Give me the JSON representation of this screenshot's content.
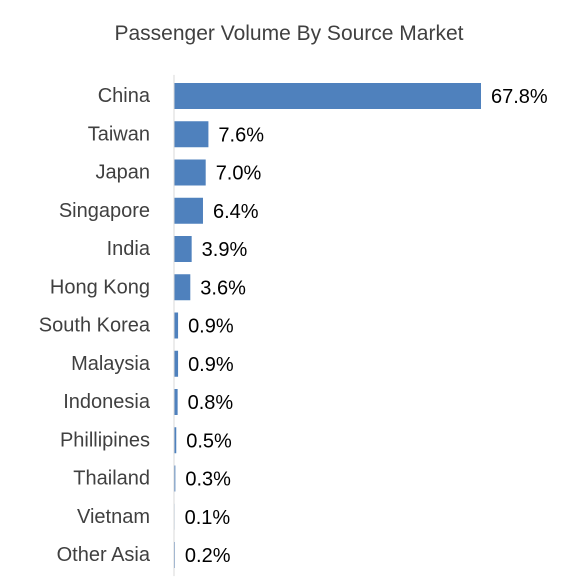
{
  "chart_data": {
    "type": "bar",
    "orientation": "horizontal",
    "title": "Passenger Volume By Source Market",
    "categories": [
      "China",
      "Taiwan",
      "Japan",
      "Singapore",
      "India",
      "Hong Kong",
      "South Korea",
      "Malaysia",
      "Indonesia",
      "Phillipines",
      "Thailand",
      "Vietnam",
      "Other Asia"
    ],
    "values": [
      67.8,
      7.6,
      7.0,
      6.4,
      3.9,
      3.6,
      0.9,
      0.9,
      0.8,
      0.5,
      0.3,
      0.1,
      0.2
    ],
    "data_labels": [
      "67.8%",
      "7.6%",
      "7.0%",
      "6.4%",
      "3.9%",
      "3.6%",
      "0.9%",
      "0.9%",
      "0.8%",
      "0.5%",
      "0.3%",
      "0.1%",
      "0.2%"
    ],
    "unit": "%",
    "xlim": [
      0,
      67.8
    ],
    "grid": false,
    "legend": "none",
    "bar_color": "#4f81bd",
    "axis_color": "#d9d9d9"
  }
}
